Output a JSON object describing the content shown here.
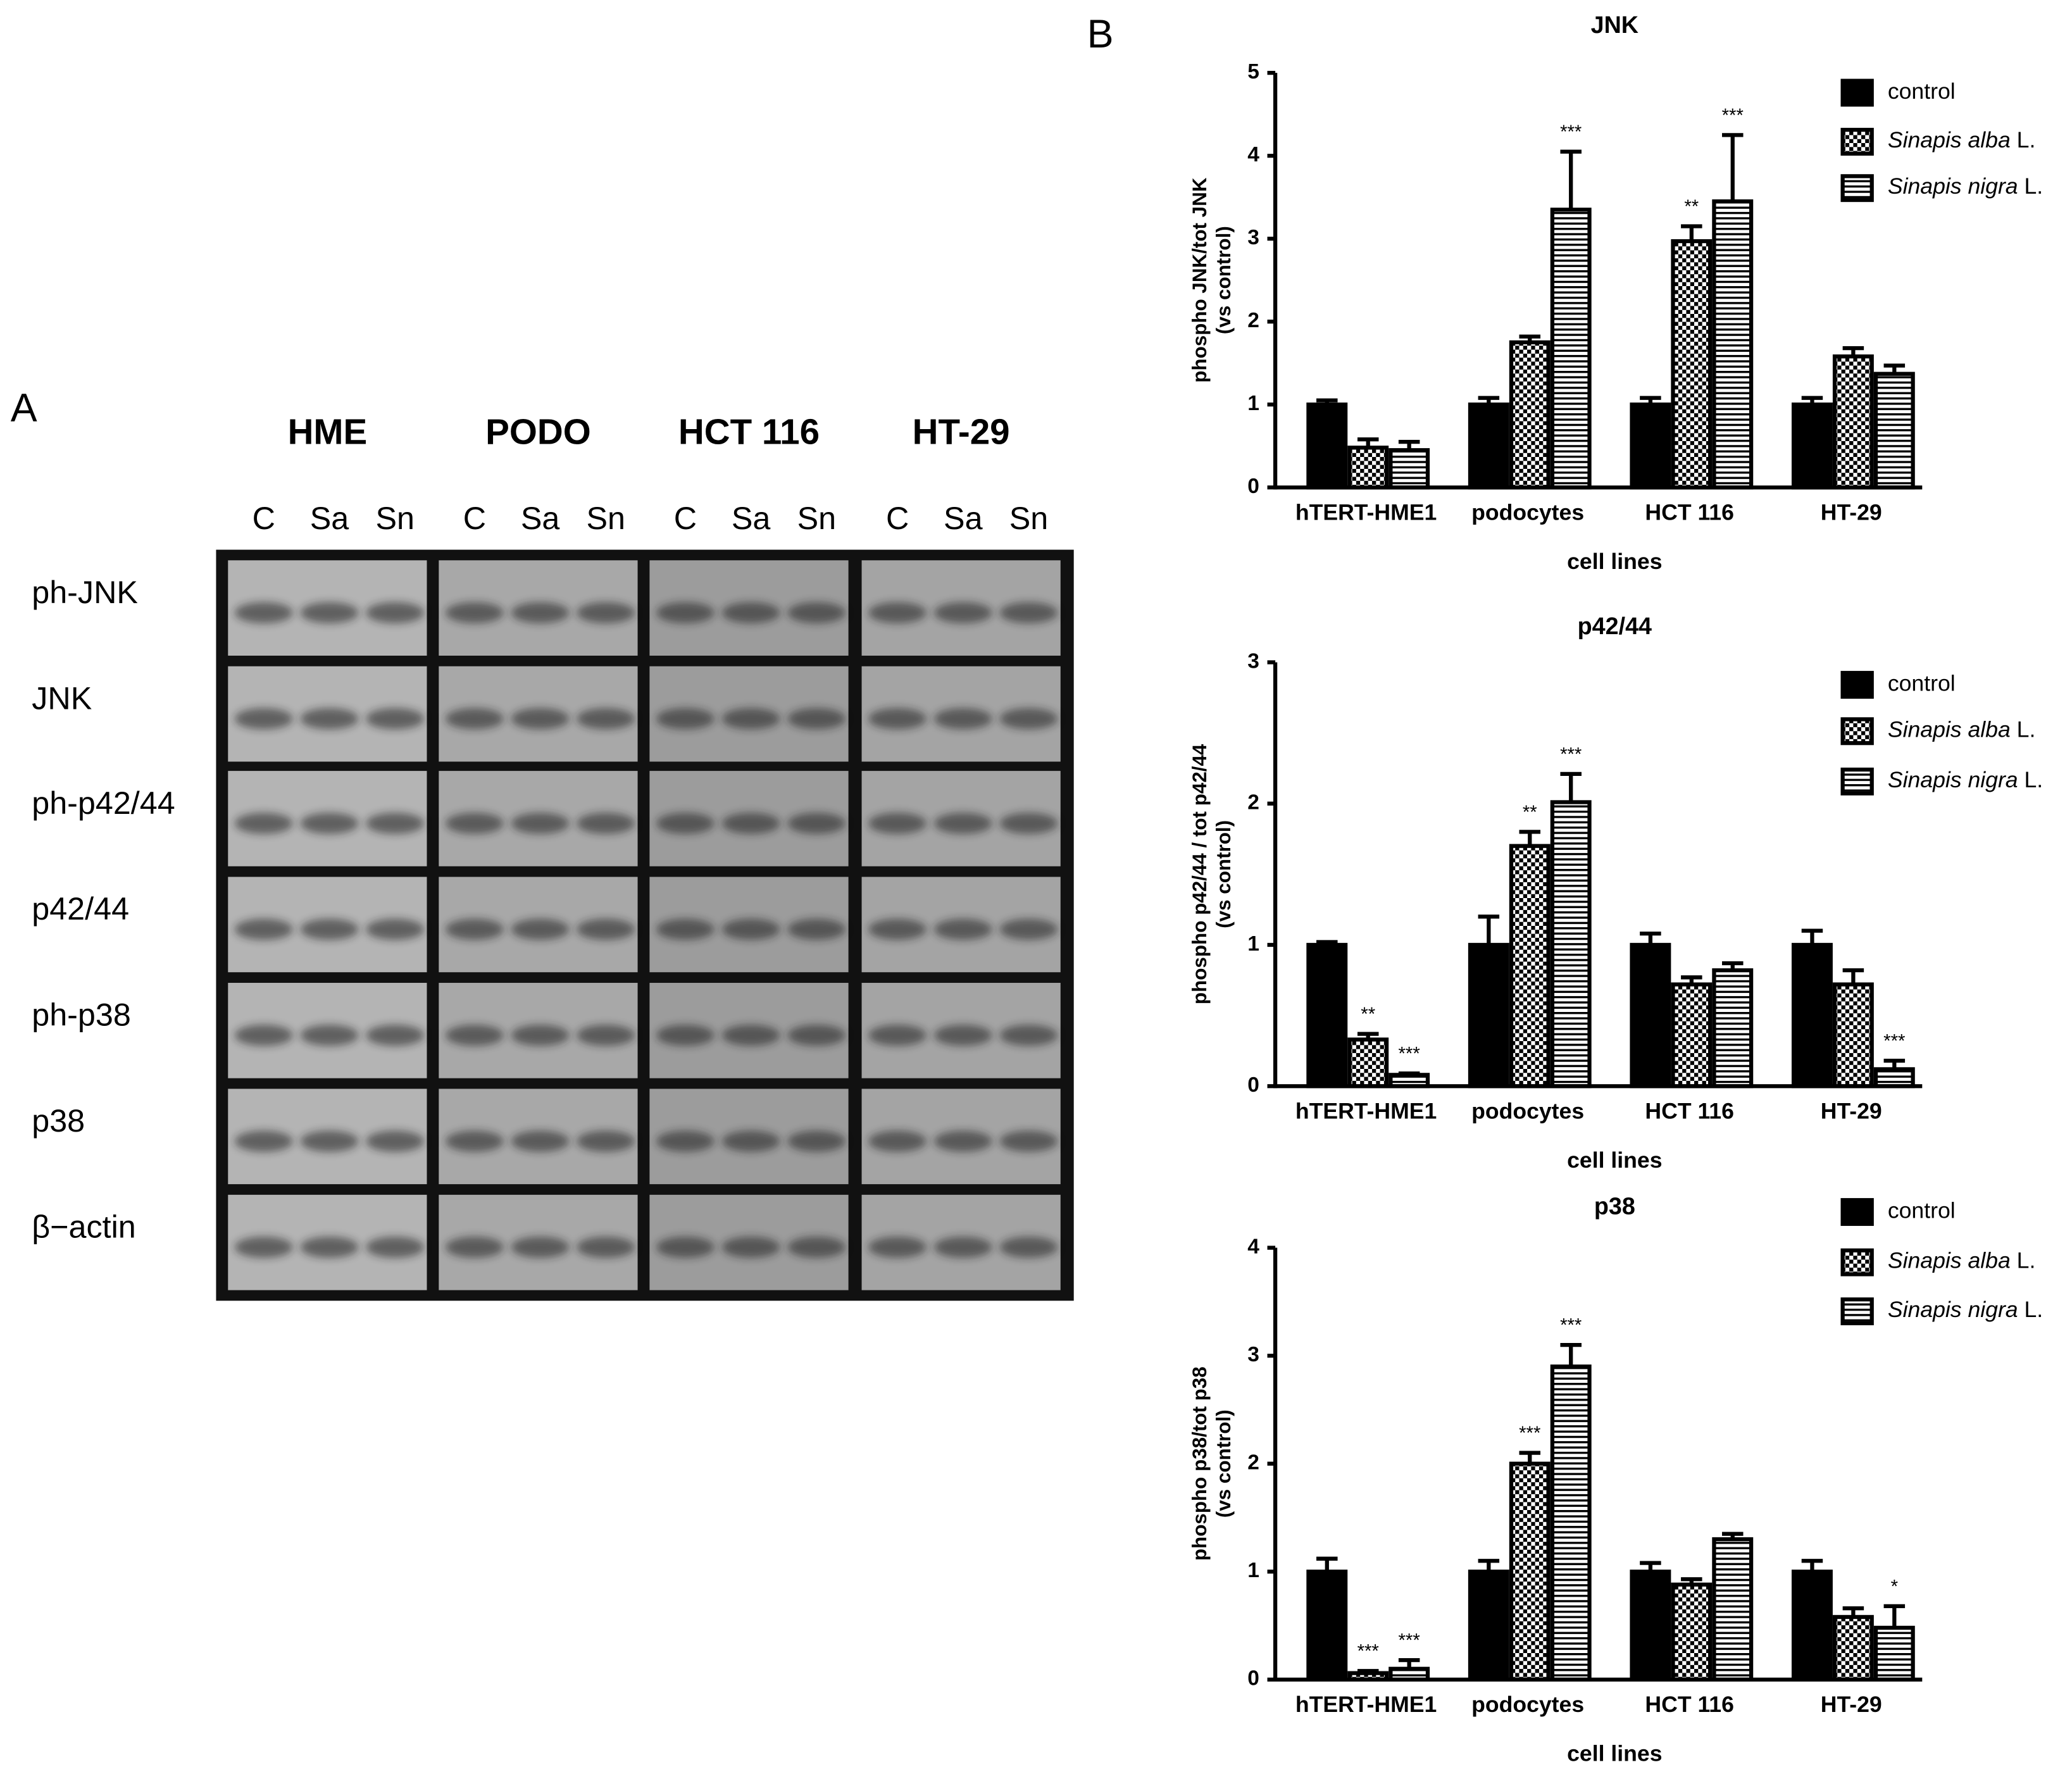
{
  "blot": {
    "panel_label": "A",
    "groups": [
      "HME",
      "PODO",
      "HCT 116",
      "HT-29"
    ],
    "lanes": [
      "C",
      "Sa",
      "Sn"
    ],
    "rows": [
      "ph-JNK",
      "JNK",
      "ph-p42/44",
      "p42/44",
      "ph-p38",
      "p38",
      "β−actin"
    ]
  },
  "panel_b": "B",
  "chart_data": [
    {
      "type": "bar",
      "title": "JNK",
      "ylabel": [
        "phospho JNK/tot JNK",
        "(vs control)"
      ],
      "xlabel": "cell lines",
      "categories": [
        "hTERT-HME1",
        "podocytes",
        "HCT 116",
        "HT-29"
      ],
      "ylim": [
        0,
        5
      ],
      "yticks": [
        0,
        1,
        2,
        3,
        4,
        5
      ],
      "series": [
        {
          "name": "control",
          "color": "#000000",
          "pattern": "solid",
          "values": [
            1.0,
            1.0,
            1.0,
            1.0
          ],
          "errors": [
            0.05,
            0.08,
            0.08,
            0.08
          ],
          "significance": [
            null,
            null,
            null,
            null
          ]
        },
        {
          "name": "Sinapis alba L.",
          "color": "#000000",
          "pattern": "checker",
          "values": [
            0.48,
            1.75,
            2.97,
            1.58
          ],
          "errors": [
            0.1,
            0.07,
            0.18,
            0.1
          ],
          "significance": [
            null,
            null,
            "**",
            null
          ]
        },
        {
          "name": "Sinapis nigra L.",
          "color": "#000000",
          "pattern": "stripes",
          "values": [
            0.45,
            3.35,
            3.45,
            1.37
          ],
          "errors": [
            0.1,
            0.7,
            0.8,
            0.1
          ],
          "significance": [
            null,
            "***",
            "***",
            null
          ]
        }
      ]
    },
    {
      "type": "bar",
      "title": "p42/44",
      "ylabel": [
        "phospho p42/44 / tot p42/44",
        "(vs control)"
      ],
      "xlabel": "cell lines",
      "categories": [
        "hTERT-HME1",
        "podocytes",
        "HCT 116",
        "HT-29"
      ],
      "ylim": [
        0,
        3
      ],
      "yticks": [
        0,
        1,
        2,
        3
      ],
      "series": [
        {
          "name": "control",
          "color": "#000000",
          "pattern": "solid",
          "values": [
            1.0,
            1.0,
            1.0,
            1.0
          ],
          "errors": [
            0.02,
            0.2,
            0.08,
            0.1
          ],
          "significance": [
            null,
            null,
            null,
            null
          ]
        },
        {
          "name": "Sinapis alba L.",
          "color": "#000000",
          "pattern": "checker",
          "values": [
            0.33,
            1.7,
            0.72,
            0.72
          ],
          "errors": [
            0.04,
            0.1,
            0.05,
            0.1
          ],
          "significance": [
            "**",
            "**",
            null,
            null
          ]
        },
        {
          "name": "Sinapis nigra L.",
          "color": "#000000",
          "pattern": "stripes",
          "values": [
            0.08,
            2.01,
            0.82,
            0.12
          ],
          "errors": [
            0.01,
            0.2,
            0.05,
            0.06
          ],
          "significance": [
            "***",
            "***",
            null,
            "***"
          ]
        }
      ]
    },
    {
      "type": "bar",
      "title": "p38",
      "ylabel": [
        "phospho p38/tot p38",
        "(vs control)"
      ],
      "xlabel": "cell lines",
      "categories": [
        "hTERT-HME1",
        "podocytes",
        "HCT 116",
        "HT-29"
      ],
      "ylim": [
        0,
        4
      ],
      "yticks": [
        0,
        1,
        2,
        3,
        4
      ],
      "series": [
        {
          "name": "control",
          "color": "#000000",
          "pattern": "solid",
          "values": [
            1.0,
            1.0,
            1.0,
            1.0
          ],
          "errors": [
            0.12,
            0.1,
            0.08,
            0.1
          ],
          "significance": [
            null,
            null,
            null,
            null
          ]
        },
        {
          "name": "Sinapis alba L.",
          "color": "#000000",
          "pattern": "checker",
          "values": [
            0.06,
            2.0,
            0.88,
            0.58
          ],
          "errors": [
            0.02,
            0.1,
            0.05,
            0.08
          ],
          "significance": [
            "***",
            "***",
            null,
            null
          ]
        },
        {
          "name": "Sinapis nigra L.",
          "color": "#000000",
          "pattern": "stripes",
          "values": [
            0.1,
            2.9,
            1.3,
            0.48
          ],
          "errors": [
            0.08,
            0.2,
            0.05,
            0.2
          ],
          "significance": [
            "***",
            "***",
            null,
            "*"
          ]
        }
      ]
    }
  ]
}
